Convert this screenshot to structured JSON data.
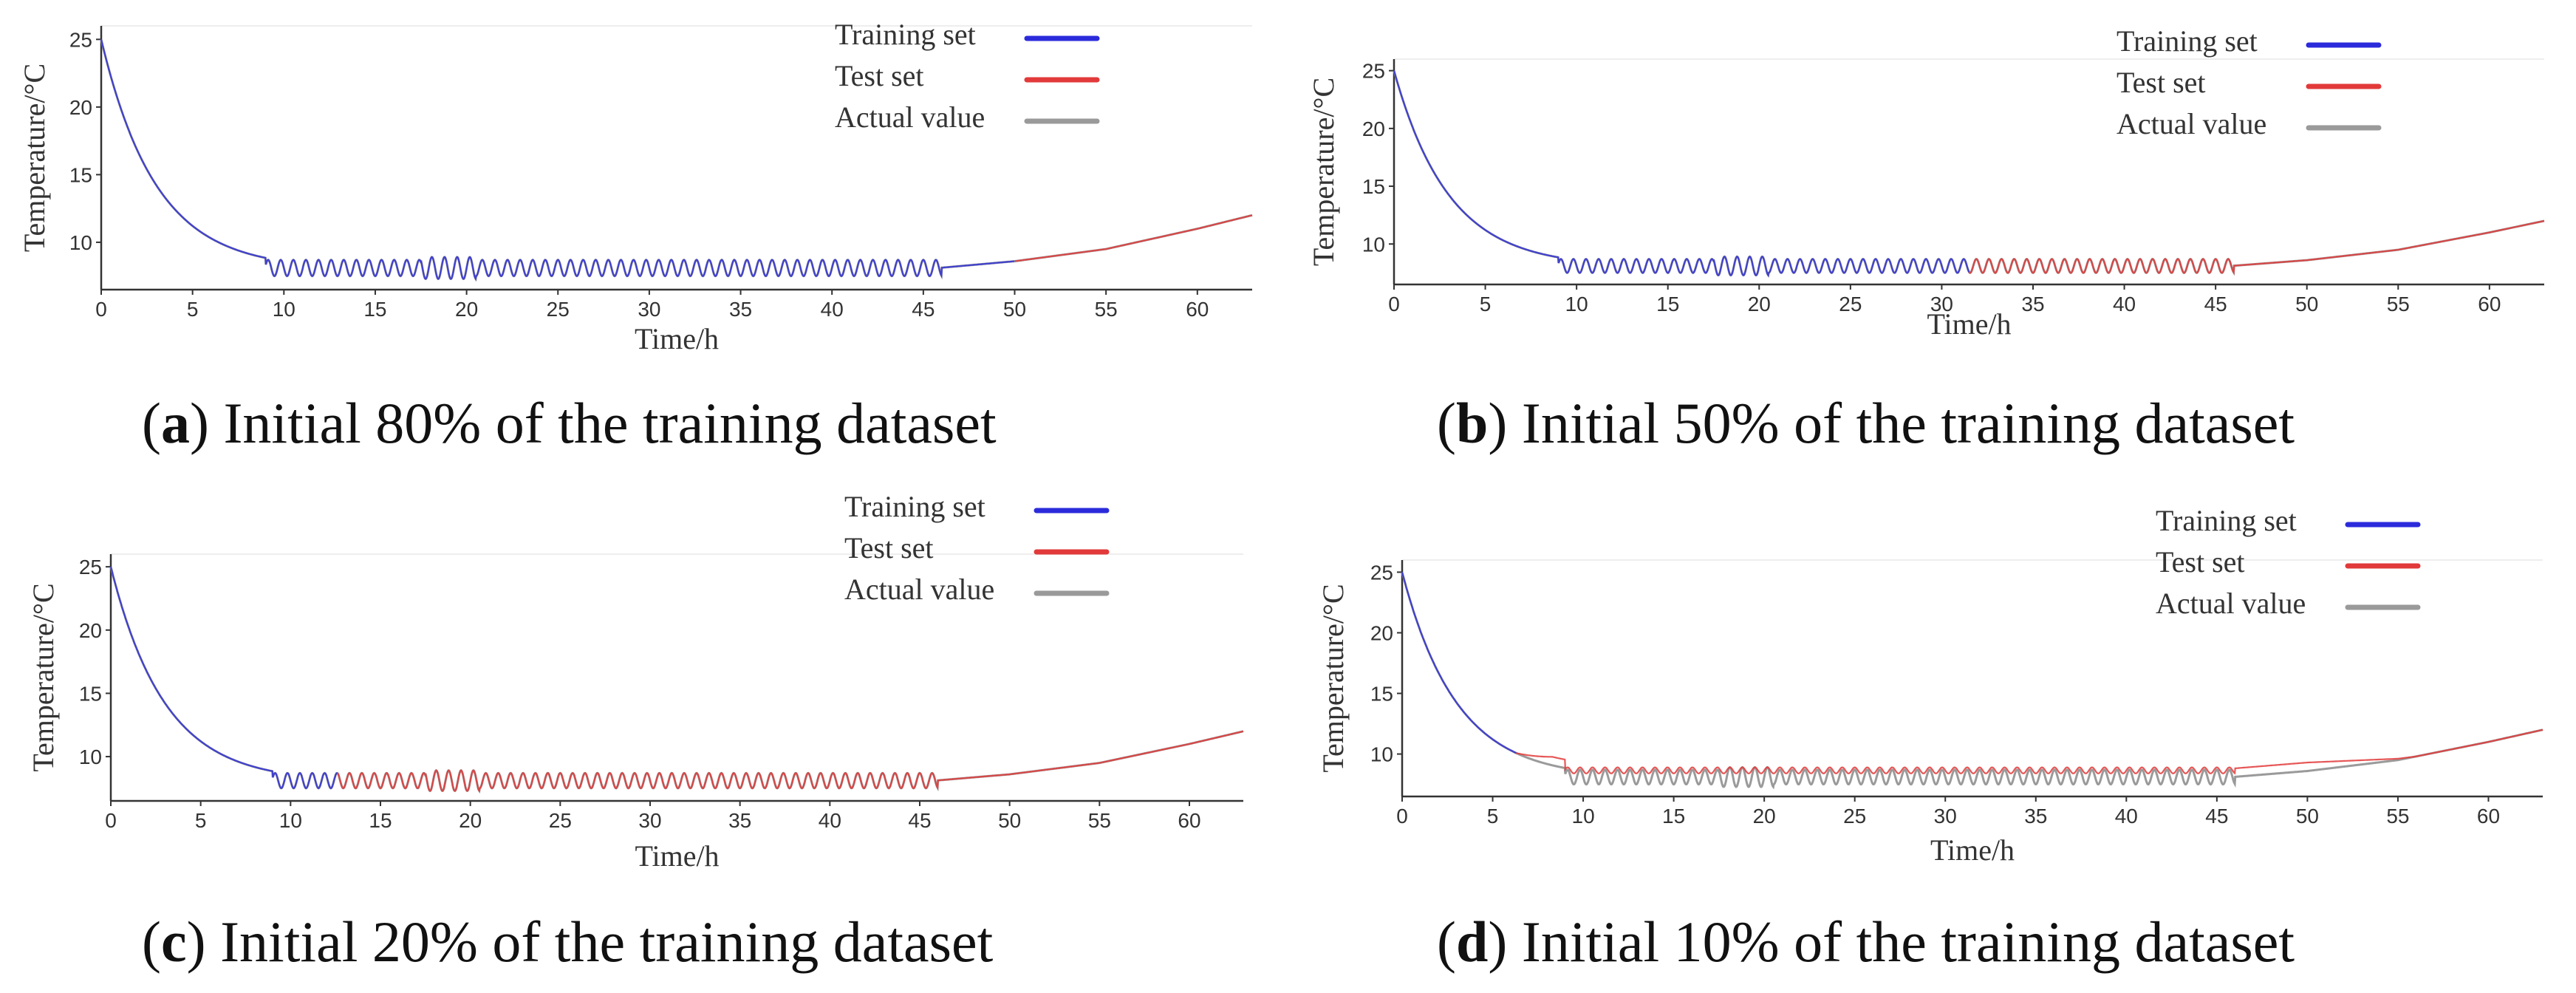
{
  "colors": {
    "training": "#2b2bdb",
    "test": "#e23a3a",
    "actual": "#9a9a9a",
    "axis": "#333333"
  },
  "chart_data": [
    {
      "type": "line",
      "panel": "a",
      "xlabel": "Time/h",
      "ylabel": "Temperature/°C",
      "xlim": [
        0,
        63
      ],
      "ylim": [
        6.5,
        26
      ],
      "xticks": [
        0,
        5,
        10,
        15,
        20,
        25,
        30,
        35,
        40,
        45,
        50,
        55,
        60
      ],
      "yticks": [
        10,
        15,
        20,
        25
      ],
      "legend": [
        "Training set",
        "Test set",
        "Actual value"
      ],
      "legend_position": "top-right",
      "train_end": 50,
      "test_offset": 0,
      "series": [
        {
          "name": "Training set",
          "x_range": [
            0,
            50
          ],
          "values": "overlaps actual value"
        },
        {
          "name": "Test set",
          "x_range": [
            50,
            63
          ],
          "values": "overlaps actual value"
        },
        {
          "name": "Actual value",
          "x_range": [
            0,
            63
          ],
          "key_points": [
            [
              0,
              25
            ],
            [
              5,
              11.2
            ],
            [
              9,
              8
            ],
            [
              20,
              8
            ],
            [
              45,
              8
            ],
            [
              50,
              8.6
            ],
            [
              55,
              9.5
            ],
            [
              60,
              11
            ],
            [
              63,
              12
            ]
          ],
          "oscillation_range": [
            9,
            46
          ],
          "oscillation_band": [
            7.5,
            8.7
          ]
        }
      ],
      "caption_label": "a",
      "caption_text": ") Initial 80% of the training dataset"
    },
    {
      "type": "line",
      "panel": "b",
      "xlabel": "Time/h",
      "ylabel": "Temperature/°C",
      "xlim": [
        0,
        63
      ],
      "ylim": [
        6.5,
        26
      ],
      "xticks": [
        0,
        5,
        10,
        15,
        20,
        25,
        30,
        35,
        40,
        45,
        50,
        55,
        60
      ],
      "yticks": [
        10,
        15,
        20,
        25
      ],
      "legend": [
        "Training set",
        "Test set",
        "Actual value"
      ],
      "legend_position": "top-right",
      "train_end": 31.5,
      "test_offset": 0,
      "series": [
        {
          "name": "Training set",
          "x_range": [
            0,
            31.5
          ],
          "values": "overlaps actual value"
        },
        {
          "name": "Test set",
          "x_range": [
            31.5,
            63
          ],
          "values": "overlaps actual value"
        },
        {
          "name": "Actual value",
          "x_range": [
            0,
            63
          ],
          "key_points": [
            [
              0,
              25
            ],
            [
              5,
              11.2
            ],
            [
              9,
              8
            ],
            [
              20,
              8
            ],
            [
              45,
              8
            ],
            [
              50,
              8.6
            ],
            [
              55,
              9.5
            ],
            [
              60,
              11
            ],
            [
              63,
              12
            ]
          ],
          "oscillation_range": [
            9,
            46
          ],
          "oscillation_band": [
            7.5,
            8.7
          ]
        }
      ],
      "caption_label": "b",
      "caption_text": ") Initial 50% of the training dataset"
    },
    {
      "type": "line",
      "panel": "c",
      "xlabel": "Time/h",
      "ylabel": "Temperature/°C",
      "xlim": [
        0,
        63
      ],
      "ylim": [
        6.5,
        26
      ],
      "xticks": [
        0,
        5,
        10,
        15,
        20,
        25,
        30,
        35,
        40,
        45,
        50,
        55,
        60
      ],
      "yticks": [
        10,
        15,
        20,
        25
      ],
      "legend": [
        "Training set",
        "Test set",
        "Actual value"
      ],
      "legend_position": "top-right",
      "train_end": 12.6,
      "test_offset": 0,
      "series": [
        {
          "name": "Training set",
          "x_range": [
            0,
            12.6
          ],
          "values": "overlaps actual value"
        },
        {
          "name": "Test set",
          "x_range": [
            12.6,
            63
          ],
          "values": "overlaps actual value"
        },
        {
          "name": "Actual value",
          "x_range": [
            0,
            63
          ],
          "key_points": [
            [
              0,
              25
            ],
            [
              5,
              11.2
            ],
            [
              9,
              8
            ],
            [
              20,
              8
            ],
            [
              45,
              8
            ],
            [
              50,
              8.6
            ],
            [
              55,
              9.5
            ],
            [
              60,
              11
            ],
            [
              63,
              12
            ]
          ],
          "oscillation_range": [
            9,
            46
          ],
          "oscillation_band": [
            7.5,
            8.7
          ]
        }
      ],
      "caption_label": "c",
      "caption_text": ") Initial 20% of the training dataset"
    },
    {
      "type": "line",
      "panel": "d",
      "xlabel": "Time/h",
      "ylabel": "Temperature/°C",
      "xlim": [
        0,
        63
      ],
      "ylim": [
        6.5,
        26
      ],
      "xticks": [
        0,
        5,
        10,
        15,
        20,
        25,
        30,
        35,
        40,
        45,
        50,
        55,
        60
      ],
      "yticks": [
        10,
        15,
        20,
        25
      ],
      "legend": [
        "Training set",
        "Test set",
        "Actual value"
      ],
      "legend_position": "top-right",
      "train_end": 6.3,
      "test_offset": 0.7,
      "series": [
        {
          "name": "Training set",
          "x_range": [
            0,
            6.3
          ],
          "values": "overlaps actual value"
        },
        {
          "name": "Test set",
          "x_range": [
            6.3,
            63
          ],
          "values": "actual value +0.7 °C offset, dense oscillation 8.4–8.9"
        },
        {
          "name": "Actual value",
          "x_range": [
            0,
            63
          ],
          "key_points": [
            [
              0,
              25
            ],
            [
              5,
              11.2
            ],
            [
              9,
              8
            ],
            [
              20,
              8
            ],
            [
              45,
              8
            ],
            [
              50,
              8.6
            ],
            [
              55,
              9.5
            ],
            [
              60,
              11
            ],
            [
              63,
              12
            ]
          ],
          "oscillation_range": [
            9,
            46
          ],
          "oscillation_band": [
            7.5,
            8.7
          ]
        }
      ],
      "caption_label": "d",
      "caption_text": ") Initial 10% of the training dataset"
    }
  ]
}
